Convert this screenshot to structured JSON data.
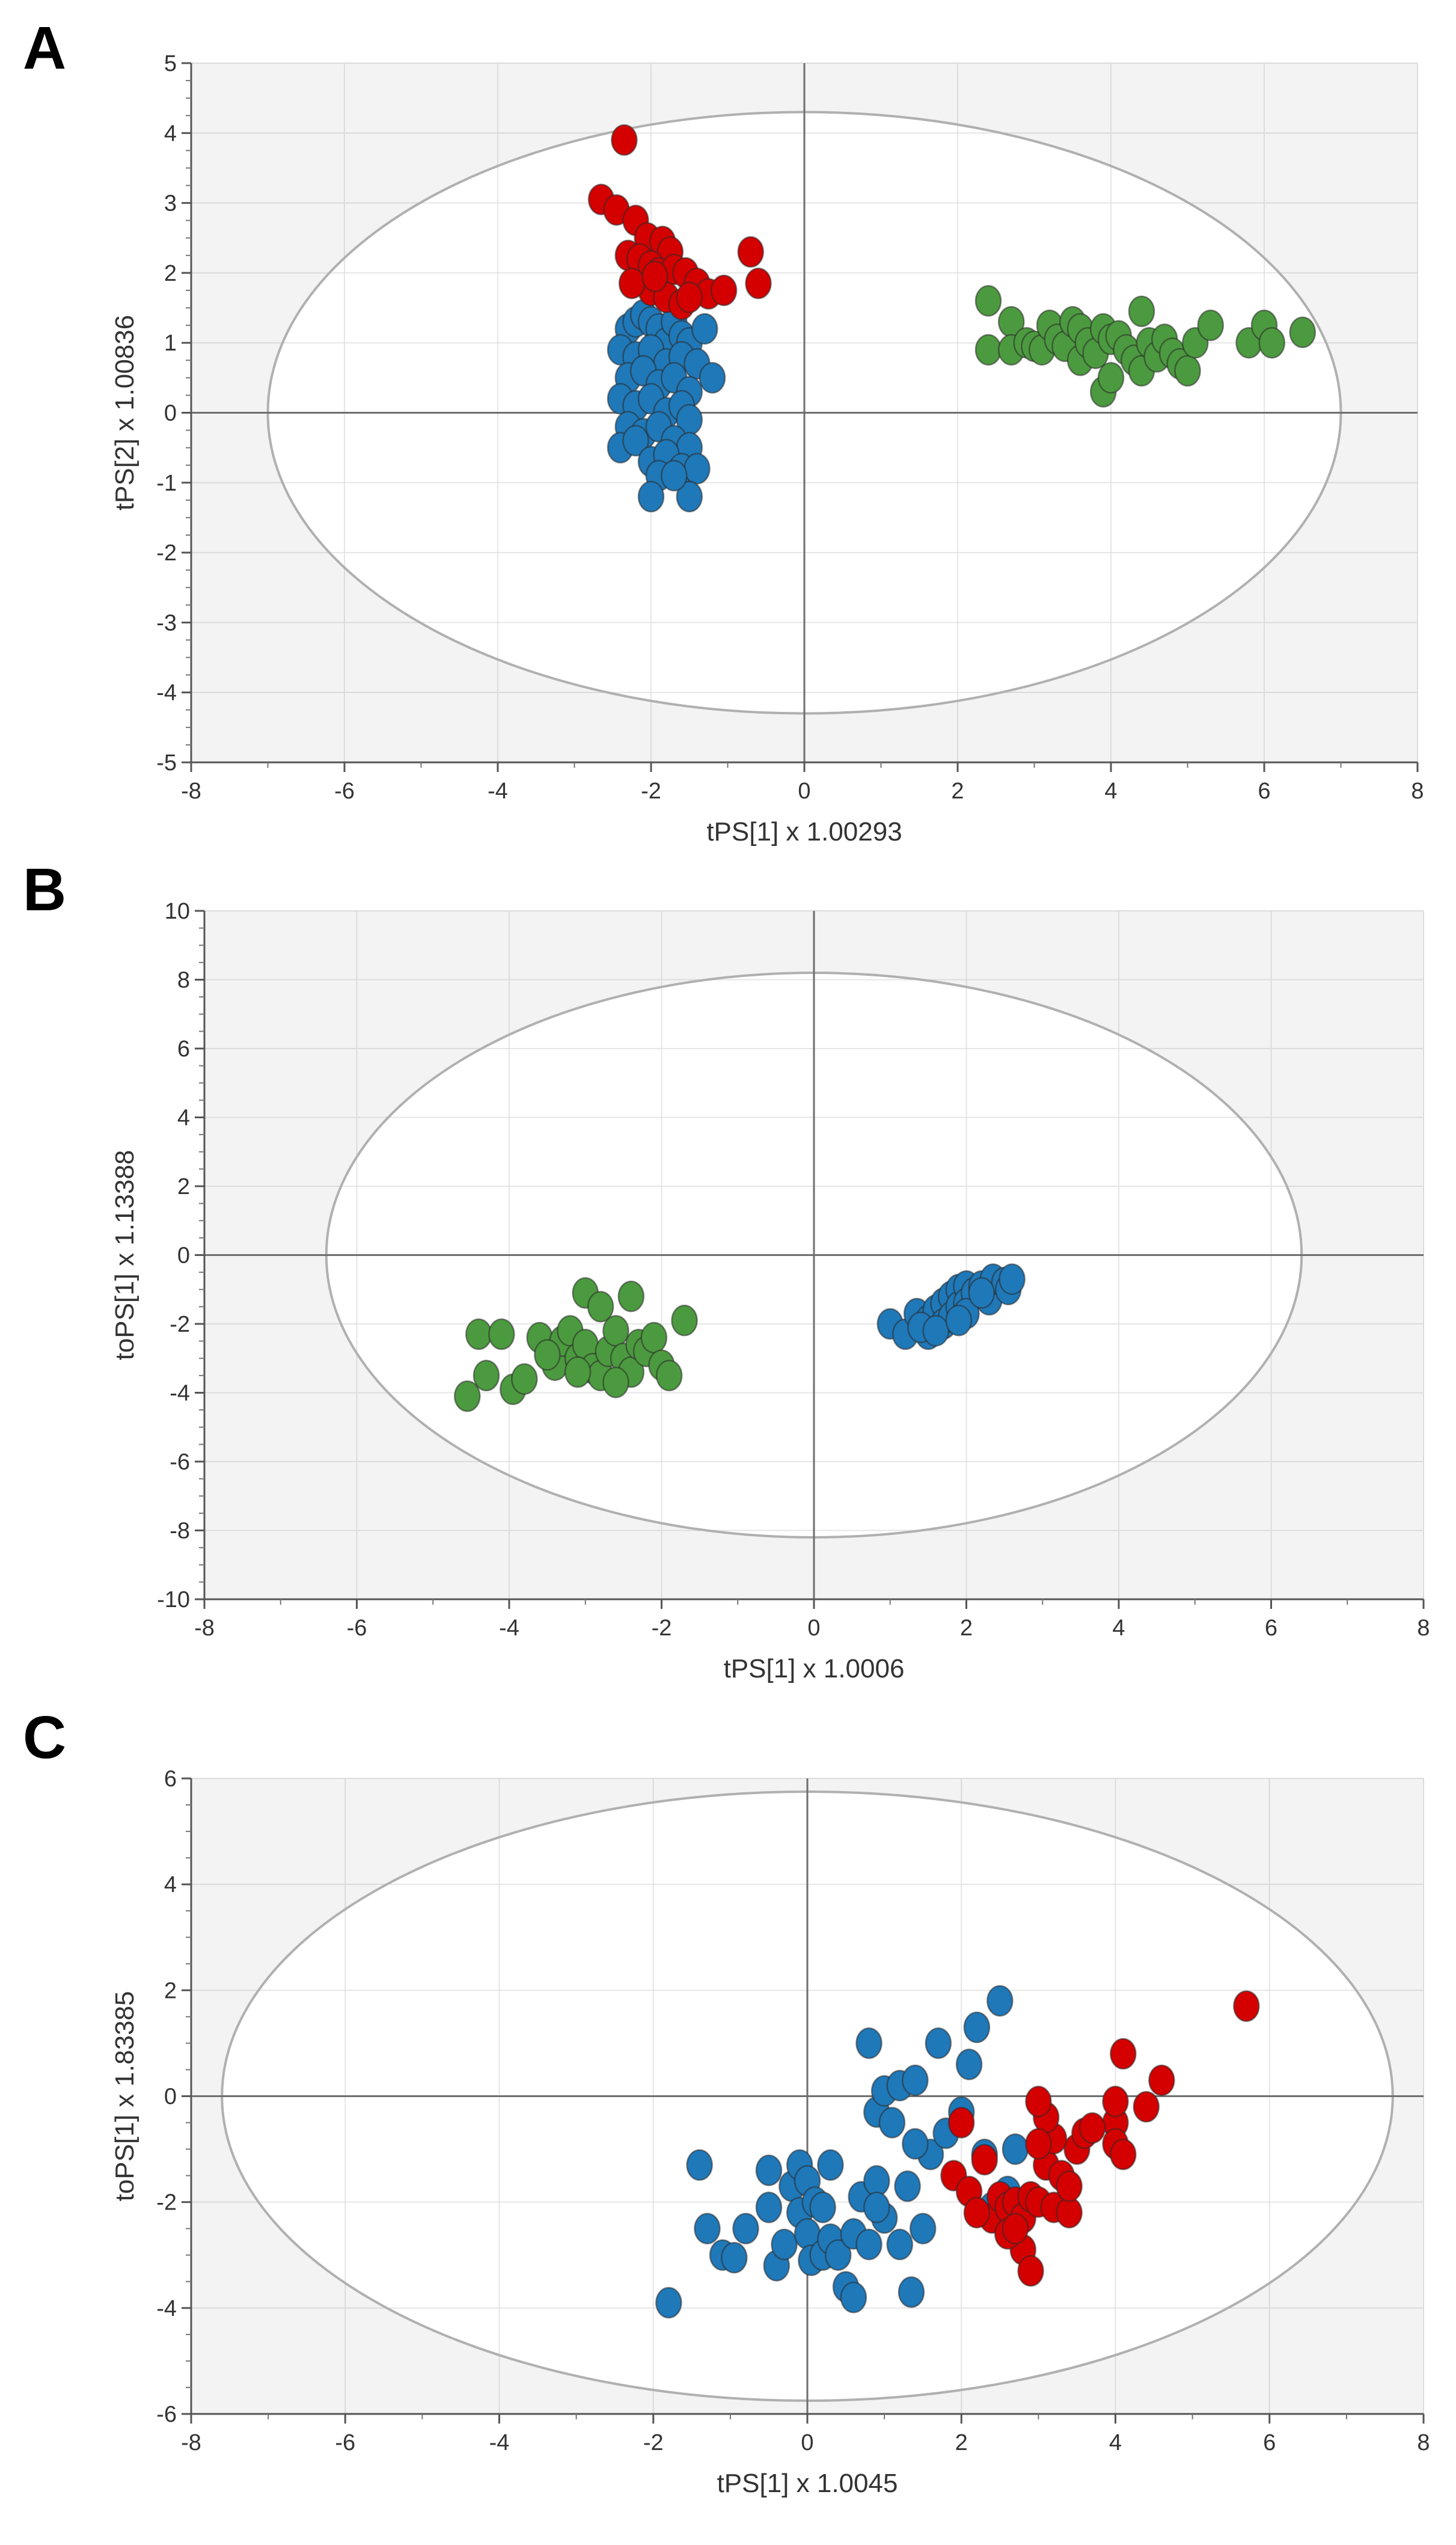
{
  "panels": [
    {
      "letter": "A"
    },
    {
      "letter": "B"
    },
    {
      "letter": "C"
    }
  ],
  "colors": {
    "blue": "#1f78b8",
    "red": "#d40000",
    "green": "#4c9a3f",
    "ellipse": "#b0b0b0",
    "shade": "#f3f3f3",
    "grid": "#dcdcdc"
  },
  "chart_data": [
    {
      "type": "scatter",
      "panel": "A",
      "xlabel": "tPS[1] x 1.00293",
      "ylabel": "tPS[2] x 1.00836",
      "xlim": [
        -8,
        8
      ],
      "ylim": [
        -5,
        5
      ],
      "xticks": [
        -8,
        -6,
        -4,
        -2,
        0,
        2,
        4,
        6,
        8
      ],
      "yticks": [
        -5,
        -4,
        -3,
        -2,
        -1,
        0,
        1,
        2,
        3,
        4,
        5
      ],
      "ellipse": {
        "rx": 7.0,
        "ry": 4.3
      },
      "series": [
        {
          "name": "blue",
          "color": "blue",
          "points": [
            [
              -2.3,
              1.2
            ],
            [
              -2.2,
              1.3
            ],
            [
              -2.1,
              1.4
            ],
            [
              -2.0,
              1.3
            ],
            [
              -1.9,
              1.2
            ],
            [
              -1.8,
              1.0
            ],
            [
              -1.7,
              1.3
            ],
            [
              -1.6,
              1.1
            ],
            [
              -1.5,
              1.0
            ],
            [
              -1.3,
              1.2
            ],
            [
              -2.4,
              0.9
            ],
            [
              -2.2,
              0.8
            ],
            [
              -2.0,
              0.9
            ],
            [
              -1.8,
              0.7
            ],
            [
              -1.6,
              0.8
            ],
            [
              -1.4,
              0.7
            ],
            [
              -1.2,
              0.5
            ],
            [
              -2.3,
              0.5
            ],
            [
              -2.1,
              0.6
            ],
            [
              -1.9,
              0.4
            ],
            [
              -1.7,
              0.5
            ],
            [
              -1.5,
              0.3
            ],
            [
              -2.4,
              0.2
            ],
            [
              -2.2,
              0.1
            ],
            [
              -2.0,
              0.2
            ],
            [
              -1.8,
              0.0
            ],
            [
              -1.6,
              0.1
            ],
            [
              -1.5,
              -0.1
            ],
            [
              -2.3,
              -0.2
            ],
            [
              -2.1,
              -0.3
            ],
            [
              -1.9,
              -0.2
            ],
            [
              -1.7,
              -0.4
            ],
            [
              -1.5,
              -0.5
            ],
            [
              -2.4,
              -0.5
            ],
            [
              -2.2,
              -0.4
            ],
            [
              -2.0,
              -0.7
            ],
            [
              -1.8,
              -0.6
            ],
            [
              -1.6,
              -0.8
            ],
            [
              -1.4,
              -0.8
            ],
            [
              -1.9,
              -0.9
            ],
            [
              -2.0,
              -1.2
            ],
            [
              -1.5,
              -1.2
            ],
            [
              -1.7,
              -0.9
            ]
          ]
        },
        {
          "name": "red",
          "color": "red",
          "points": [
            [
              -2.35,
              3.9
            ],
            [
              -2.65,
              3.05
            ],
            [
              -2.45,
              2.9
            ],
            [
              -2.2,
              2.75
            ],
            [
              -2.05,
              2.5
            ],
            [
              -1.85,
              2.45
            ],
            [
              -1.75,
              2.3
            ],
            [
              -2.3,
              2.25
            ],
            [
              -2.15,
              2.2
            ],
            [
              -2.0,
              2.1
            ],
            [
              -1.9,
              2.0
            ],
            [
              -1.7,
              2.05
            ],
            [
              -1.55,
              2.0
            ],
            [
              -1.4,
              1.85
            ],
            [
              -1.25,
              1.7
            ],
            [
              -1.05,
              1.75
            ],
            [
              -0.7,
              2.3
            ],
            [
              -0.6,
              1.85
            ],
            [
              -2.0,
              1.75
            ],
            [
              -1.8,
              1.65
            ],
            [
              -1.6,
              1.55
            ],
            [
              -1.5,
              1.65
            ],
            [
              -2.25,
              1.85
            ],
            [
              -1.95,
              1.95
            ]
          ]
        },
        {
          "name": "green",
          "color": "green",
          "points": [
            [
              2.4,
              1.6
            ],
            [
              2.4,
              0.9
            ],
            [
              2.7,
              1.3
            ],
            [
              2.7,
              0.9
            ],
            [
              2.9,
              1.0
            ],
            [
              3.0,
              0.95
            ],
            [
              3.1,
              0.9
            ],
            [
              3.2,
              1.25
            ],
            [
              3.3,
              1.05
            ],
            [
              3.4,
              0.95
            ],
            [
              3.5,
              1.3
            ],
            [
              3.6,
              1.2
            ],
            [
              3.6,
              0.75
            ],
            [
              3.7,
              1.0
            ],
            [
              3.8,
              0.85
            ],
            [
              3.9,
              1.2
            ],
            [
              3.9,
              0.3
            ],
            [
              4.0,
              0.5
            ],
            [
              4.0,
              1.05
            ],
            [
              4.1,
              1.1
            ],
            [
              4.2,
              0.9
            ],
            [
              4.3,
              0.75
            ],
            [
              4.4,
              1.45
            ],
            [
              4.4,
              0.6
            ],
            [
              4.5,
              1.0
            ],
            [
              4.6,
              0.8
            ],
            [
              4.7,
              1.05
            ],
            [
              4.8,
              0.85
            ],
            [
              4.9,
              0.7
            ],
            [
              5.0,
              0.6
            ],
            [
              5.1,
              1.0
            ],
            [
              5.3,
              1.25
            ],
            [
              5.8,
              1.0
            ],
            [
              6.0,
              1.25
            ],
            [
              6.1,
              1.0
            ],
            [
              6.5,
              1.15
            ]
          ]
        }
      ]
    },
    {
      "type": "scatter",
      "panel": "B",
      "xlabel": "tPS[1] x 1.0006",
      "ylabel": "toPS[1] x 1.13388",
      "xlim": [
        -8,
        8
      ],
      "ylim": [
        -10,
        10
      ],
      "xticks": [
        -8,
        -6,
        -4,
        -2,
        0,
        2,
        4,
        6,
        8
      ],
      "yticks": [
        -10,
        -8,
        -6,
        -4,
        -2,
        0,
        2,
        4,
        6,
        8,
        10
      ],
      "ellipse": {
        "rx": 6.4,
        "ry": 8.2
      },
      "series": [
        {
          "name": "green",
          "color": "green",
          "points": [
            [
              -4.4,
              -2.3
            ],
            [
              -4.1,
              -2.3
            ],
            [
              -4.3,
              -3.5
            ],
            [
              -4.55,
              -4.1
            ],
            [
              -3.95,
              -3.9
            ],
            [
              -3.6,
              -2.4
            ],
            [
              -3.4,
              -3.2
            ],
            [
              -3.3,
              -2.5
            ],
            [
              -3.2,
              -2.2
            ],
            [
              -3.1,
              -3.0
            ],
            [
              -3.0,
              -1.1
            ],
            [
              -3.0,
              -2.6
            ],
            [
              -2.9,
              -3.3
            ],
            [
              -2.8,
              -1.5
            ],
            [
              -2.8,
              -3.5
            ],
            [
              -2.7,
              -2.8
            ],
            [
              -2.6,
              -2.2
            ],
            [
              -2.5,
              -3.0
            ],
            [
              -2.4,
              -1.2
            ],
            [
              -2.4,
              -3.4
            ],
            [
              -2.3,
              -2.6
            ],
            [
              -2.2,
              -2.8
            ],
            [
              -2.1,
              -2.4
            ],
            [
              -2.0,
              -3.2
            ],
            [
              -1.9,
              -3.5
            ],
            [
              -1.7,
              -1.9
            ],
            [
              -3.5,
              -2.9
            ],
            [
              -3.8,
              -3.6
            ],
            [
              -2.6,
              -3.7
            ],
            [
              -3.1,
              -3.4
            ]
          ]
        },
        {
          "name": "blue",
          "color": "blue",
          "points": [
            [
              1.0,
              -2.0
            ],
            [
              1.2,
              -2.3
            ],
            [
              1.35,
              -1.7
            ],
            [
              1.5,
              -1.9
            ],
            [
              1.5,
              -2.3
            ],
            [
              1.6,
              -1.6
            ],
            [
              1.7,
              -1.4
            ],
            [
              1.7,
              -2.0
            ],
            [
              1.8,
              -1.2
            ],
            [
              1.8,
              -1.8
            ],
            [
              1.9,
              -1.0
            ],
            [
              1.9,
              -1.5
            ],
            [
              2.0,
              -0.9
            ],
            [
              2.0,
              -1.4
            ],
            [
              2.1,
              -1.1
            ],
            [
              2.2,
              -0.9
            ],
            [
              2.3,
              -1.3
            ],
            [
              2.35,
              -0.7
            ],
            [
              2.5,
              -0.8
            ],
            [
              2.55,
              -1.0
            ],
            [
              2.6,
              -0.7
            ],
            [
              1.4,
              -2.1
            ],
            [
              1.6,
              -2.2
            ],
            [
              2.0,
              -1.7
            ],
            [
              2.2,
              -1.1
            ],
            [
              1.9,
              -1.9
            ]
          ]
        }
      ]
    },
    {
      "type": "scatter",
      "panel": "C",
      "xlabel": "tPS[1] x 1.0045",
      "ylabel": "toPS[1] x 1.83385",
      "xlim": [
        -8,
        8
      ],
      "ylim": [
        -6,
        6
      ],
      "xticks": [
        -8,
        -6,
        -4,
        -2,
        0,
        2,
        4,
        6,
        8
      ],
      "yticks": [
        -6,
        -4,
        -2,
        0,
        2,
        4,
        6
      ],
      "ellipse": {
        "rx": 7.6,
        "ry": 5.75
      },
      "series": [
        {
          "name": "blue",
          "color": "blue",
          "points": [
            [
              -1.8,
              -3.9
            ],
            [
              -1.4,
              -1.3
            ],
            [
              -1.3,
              -2.5
            ],
            [
              -1.1,
              -3.0
            ],
            [
              -0.95,
              -3.05
            ],
            [
              -0.8,
              -2.5
            ],
            [
              -0.5,
              -1.4
            ],
            [
              -0.5,
              -2.1
            ],
            [
              -0.4,
              -3.2
            ],
            [
              -0.3,
              -2.8
            ],
            [
              -0.2,
              -1.7
            ],
            [
              -0.1,
              -1.3
            ],
            [
              -0.1,
              -2.2
            ],
            [
              0.0,
              -1.6
            ],
            [
              0.0,
              -2.6
            ],
            [
              0.05,
              -3.1
            ],
            [
              0.1,
              -2.0
            ],
            [
              0.2,
              -3.0
            ],
            [
              0.3,
              -2.7
            ],
            [
              0.3,
              -1.3
            ],
            [
              0.4,
              -3.0
            ],
            [
              0.5,
              -3.6
            ],
            [
              0.6,
              -2.6
            ],
            [
              0.6,
              -3.8
            ],
            [
              0.7,
              -1.9
            ],
            [
              0.8,
              1.0
            ],
            [
              0.8,
              -2.8
            ],
            [
              0.9,
              -1.6
            ],
            [
              0.9,
              -0.3
            ],
            [
              1.0,
              0.1
            ],
            [
              1.0,
              -2.3
            ],
            [
              1.1,
              -0.5
            ],
            [
              1.2,
              0.2
            ],
            [
              1.2,
              -2.8
            ],
            [
              1.3,
              -1.7
            ],
            [
              1.35,
              -3.7
            ],
            [
              1.4,
              0.3
            ],
            [
              1.5,
              -2.5
            ],
            [
              1.6,
              -1.1
            ],
            [
              1.7,
              1.0
            ],
            [
              1.8,
              -0.7
            ],
            [
              2.0,
              -0.3
            ],
            [
              2.1,
              0.6
            ],
            [
              2.2,
              1.3
            ],
            [
              2.3,
              -1.1
            ],
            [
              2.4,
              -2.1
            ],
            [
              2.5,
              1.8
            ],
            [
              2.6,
              -1.8
            ],
            [
              2.7,
              -1.0
            ],
            [
              1.4,
              -0.9
            ],
            [
              0.9,
              -2.1
            ],
            [
              0.2,
              -2.1
            ]
          ]
        },
        {
          "name": "red",
          "color": "red",
          "points": [
            [
              2.0,
              -0.5
            ],
            [
              2.3,
              -1.2
            ],
            [
              1.9,
              -1.5
            ],
            [
              2.1,
              -1.8
            ],
            [
              2.4,
              -2.3
            ],
            [
              2.5,
              -1.9
            ],
            [
              2.6,
              -2.1
            ],
            [
              2.7,
              -2.0
            ],
            [
              2.8,
              -2.3
            ],
            [
              2.9,
              -1.9
            ],
            [
              3.0,
              -2.0
            ],
            [
              3.1,
              -1.3
            ],
            [
              3.2,
              -2.1
            ],
            [
              3.3,
              -1.5
            ],
            [
              3.4,
              -2.2
            ],
            [
              3.5,
              -1.0
            ],
            [
              3.6,
              -0.7
            ],
            [
              3.2,
              -0.8
            ],
            [
              3.1,
              -0.4
            ],
            [
              3.0,
              -0.1
            ],
            [
              3.0,
              -0.9
            ],
            [
              2.8,
              -2.9
            ],
            [
              2.9,
              -3.3
            ],
            [
              2.6,
              -2.6
            ],
            [
              2.2,
              -2.2
            ],
            [
              3.4,
              -1.7
            ],
            [
              4.0,
              -0.5
            ],
            [
              4.0,
              -0.9
            ],
            [
              4.1,
              -1.1
            ],
            [
              4.0,
              -0.1
            ],
            [
              4.1,
              0.8
            ],
            [
              4.4,
              -0.2
            ],
            [
              4.6,
              0.3
            ],
            [
              5.7,
              1.7
            ],
            [
              3.7,
              -0.6
            ],
            [
              2.7,
              -2.5
            ]
          ]
        }
      ]
    }
  ]
}
